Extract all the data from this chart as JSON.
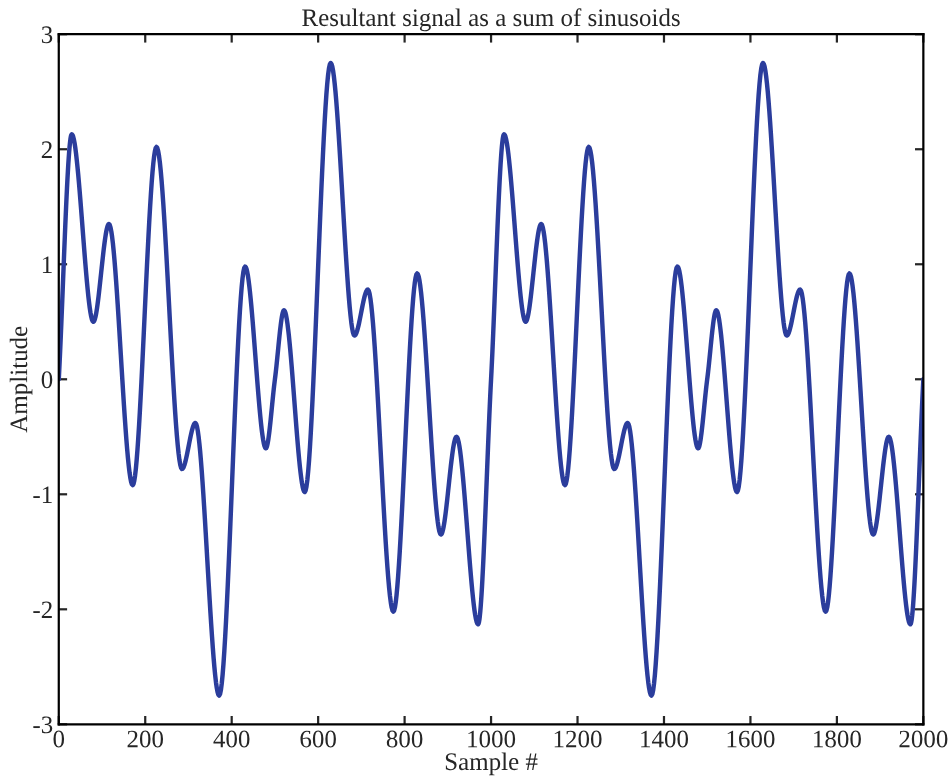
{
  "chart_data": {
    "type": "line",
    "title": "Resultant signal as a sum of sinusoids",
    "xlabel": "Sample #",
    "ylabel": "Amplitude",
    "x": [
      0,
      30,
      80,
      116,
      171,
      226,
      285,
      316,
      371,
      431,
      479,
      500,
      521,
      569,
      629,
      684,
      715,
      774,
      829,
      884,
      920,
      970,
      1000,
      1030,
      1080,
      1116,
      1171,
      1226,
      1285,
      1316,
      1371,
      1431,
      1479,
      1500,
      1521,
      1569,
      1629,
      1684,
      1715,
      1774,
      1829,
      1884,
      1920,
      1970,
      2000
    ],
    "series": [
      {
        "color": "#2b3d9c",
        "values": [
          0,
          2.13,
          0.5,
          1.35,
          -0.92,
          2.02,
          -0.78,
          -0.38,
          -2.75,
          0.98,
          -0.6,
          0,
          0.6,
          -0.98,
          2.75,
          0.38,
          0.78,
          -2.02,
          0.92,
          -1.35,
          -0.5,
          -2.13,
          0,
          2.13,
          0.5,
          1.35,
          -0.92,
          2.02,
          -0.78,
          -0.38,
          -2.75,
          0.98,
          -0.6,
          0,
          0.6,
          -0.98,
          2.75,
          0.38,
          0.78,
          -2.02,
          0.92,
          -1.35,
          -0.5,
          -2.13,
          0
        ]
      }
    ],
    "xlim": [
      0,
      2000
    ],
    "ylim": [
      -3,
      3
    ],
    "xticks": [
      0,
      200,
      400,
      600,
      800,
      1000,
      1200,
      1400,
      1600,
      1800,
      2000
    ],
    "yticks": [
      -3,
      -2,
      -1,
      0,
      1,
      2,
      3
    ],
    "grid": false,
    "line_style": "solid",
    "marker": "none"
  }
}
